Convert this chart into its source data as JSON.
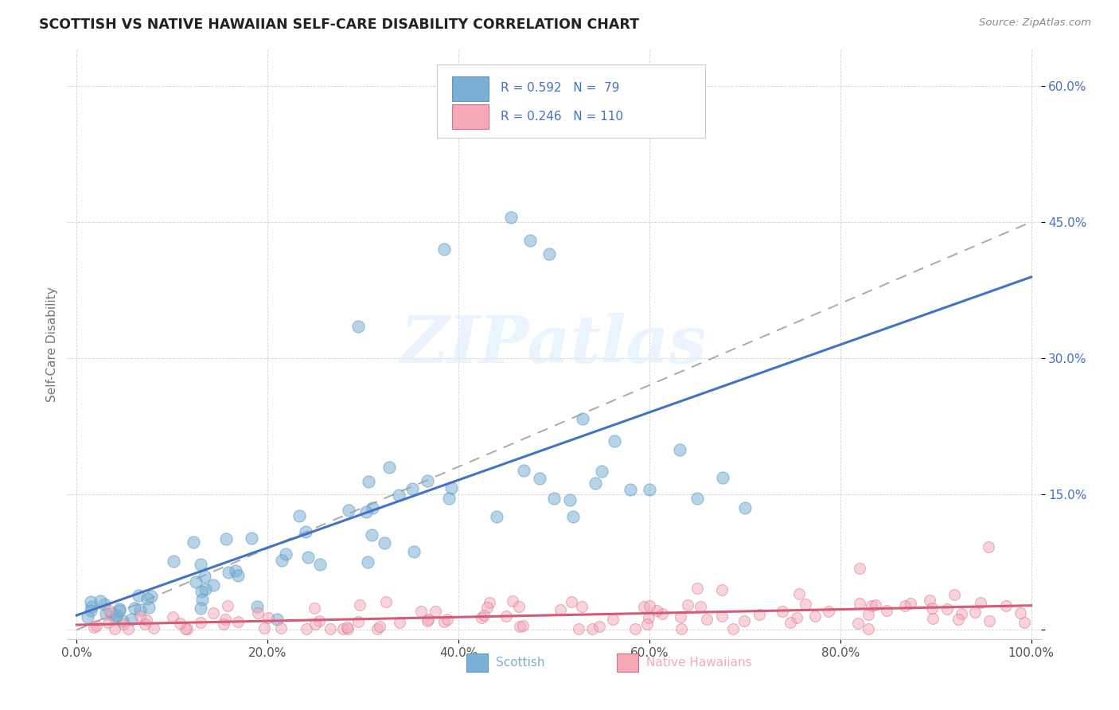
{
  "title": "SCOTTISH VS NATIVE HAWAIIAN SELF-CARE DISABILITY CORRELATION CHART",
  "source": "Source: ZipAtlas.com",
  "ylabel": "Self-Care Disability",
  "scottish_color": "#7bafd4",
  "scottish_edge_color": "#5a9abf",
  "native_hawaiian_color": "#f4a8b8",
  "native_hawaiian_edge_color": "#d4708a",
  "regression_line1_color": "#4472c4",
  "regression_line2_color": "#d45a78",
  "dashed_line_color": "#aaaaaa",
  "background_color": "#ffffff",
  "ytick_color": "#4472c4",
  "xtick_color": "#555555",
  "title_color": "#222222",
  "source_color": "#888888",
  "legend_text_color": "#4472c4"
}
